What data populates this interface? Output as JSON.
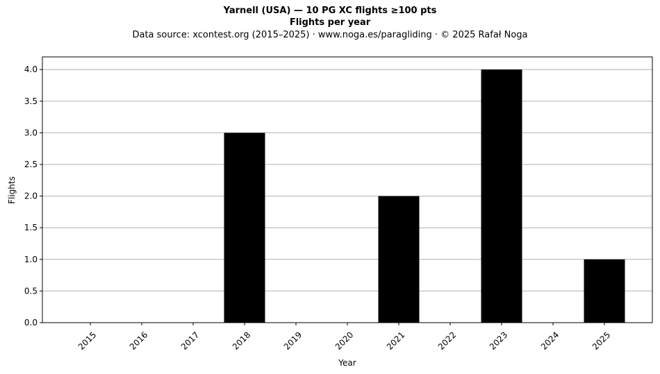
{
  "chart_data": {
    "type": "bar",
    "title": "Yarnell (USA)  —  10 PG XC flights ≥100 pts",
    "subtitle": "Flights per year",
    "source_note": "Data source: xcontest.org (2015–2025)  ·  www.noga.es/paragliding  ·  © 2025 Rafał Noga",
    "xlabel": "Year",
    "ylabel": "Flights",
    "categories": [
      "2015",
      "2016",
      "2017",
      "2018",
      "2019",
      "2020",
      "2021",
      "2022",
      "2023",
      "2024",
      "2025"
    ],
    "values": [
      0,
      0,
      0,
      3,
      0,
      0,
      2,
      0,
      4,
      0,
      1
    ],
    "ylim": [
      0,
      4.2
    ],
    "yticks": [
      "0.0",
      "0.5",
      "1.0",
      "1.5",
      "2.0",
      "2.5",
      "3.0",
      "3.5",
      "4.0"
    ],
    "grid": "horizontal",
    "bar_color": "#000000",
    "grid_color": "#b0b0b0"
  }
}
